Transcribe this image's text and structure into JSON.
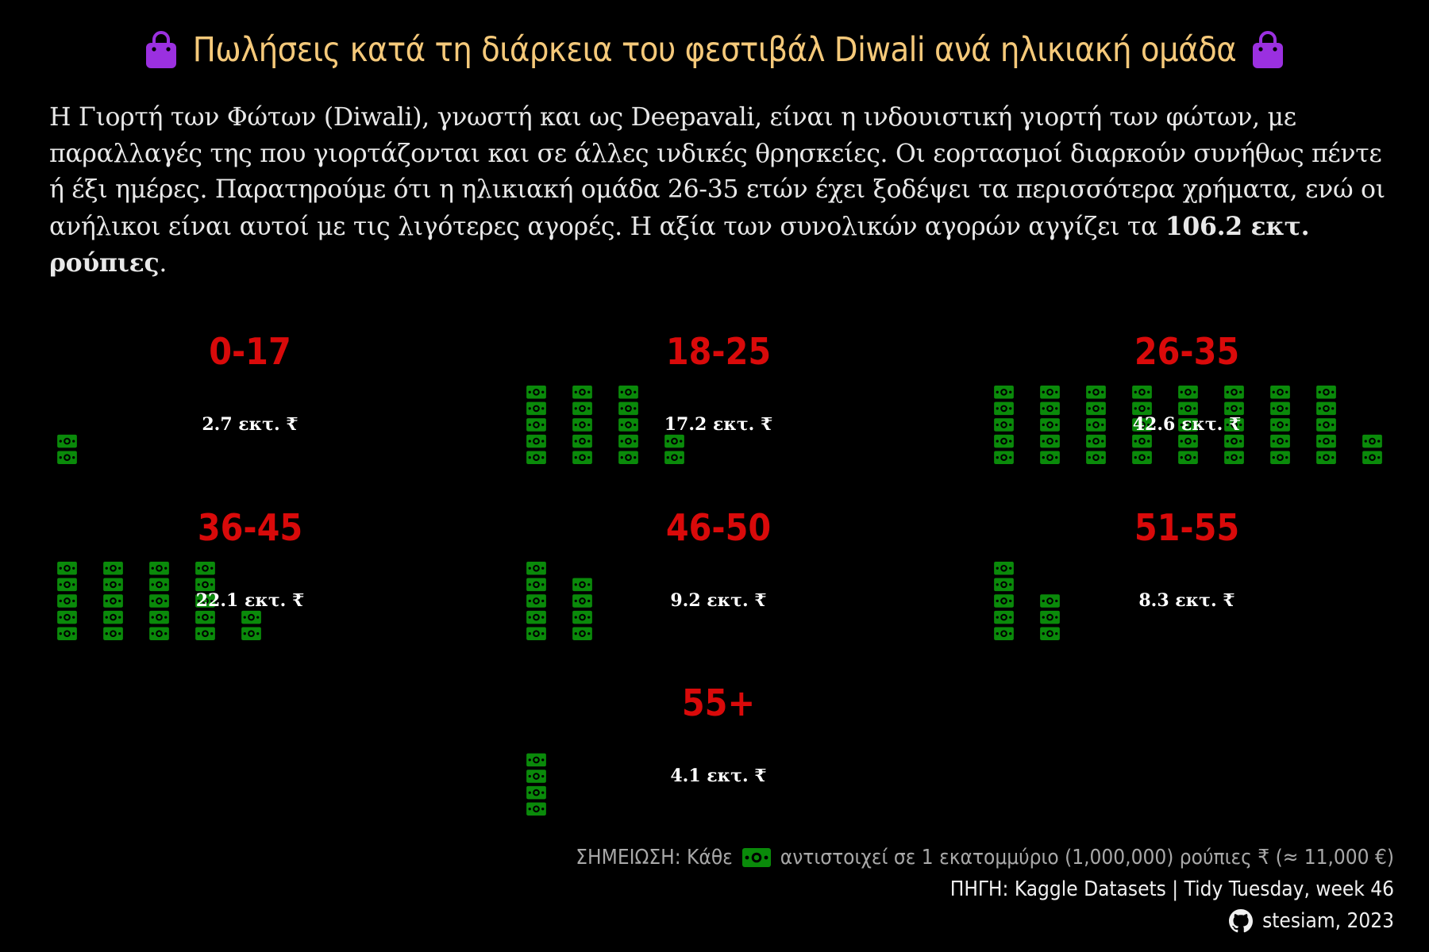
{
  "header": {
    "title": "Πωλήσεις κατά τη διάρκεια του φεστιβάλ Diwali ανά ηλικιακή ομάδα",
    "icon_left": "shopping-bag-icon",
    "icon_right": "shopping-bag-icon"
  },
  "description": {
    "text": "Η Γιορτή των Φώτων (Diwali), γνωστή και ως Deepavali, είναι η ινδουιστική γιορτή των φώτων, με παραλλαγές της που γιορτάζονται και σε άλλες ινδικές θρησκείες. Οι εορτασμοί διαρκούν συνήθως πέντε ή έξι ημέρες. Παρατηρούμε ότι η ηλικιακή ομάδα 26-35 ετών έχει ξοδέψει τα περισσότερα χρήματα, ενώ οι ανήλικοι είναι αυτοί με τις λιγότερες αγορές. Η αξία των συνολικών αγορών αγγίζει τα ",
    "highlight": "106.2 εκτ. ρούπιες",
    "end": "."
  },
  "colors": {
    "background": "#000000",
    "title": "#f5c97a",
    "group_label": "#d90a0a",
    "money_icon": "#0a8a0a",
    "bag_icon": "#9b30e0",
    "value_text": "#ffffff"
  },
  "chart_data": {
    "type": "waffle",
    "unit": "1 εκατομμύριο ρούπιες",
    "groups": [
      {
        "label": "0-17",
        "value": 2.7,
        "value_label": "2.7 εκτ. ₹",
        "icons": 2
      },
      {
        "label": "18-25",
        "value": 17.2,
        "value_label": "17.2 εκτ. ₹",
        "icons": 17
      },
      {
        "label": "26-35",
        "value": 42.6,
        "value_label": "42.6 εκτ. ₹",
        "icons": 42
      },
      {
        "label": "36-45",
        "value": 22.1,
        "value_label": "22.1 εκτ. ₹",
        "icons": 22
      },
      {
        "label": "46-50",
        "value": 9.2,
        "value_label": "9.2 εκτ. ₹",
        "icons": 9
      },
      {
        "label": "51-55",
        "value": 8.3,
        "value_label": "8.3 εκτ. ₹",
        "icons": 8
      },
      {
        "label": "55+",
        "value": 4.1,
        "value_label": "4.1 εκτ. ₹",
        "icons": 4
      }
    ],
    "icon": "money-bill-icon"
  },
  "footer": {
    "note_prefix": "ΣΗΜΕΙΩΣΗ: Κάθε",
    "note_suffix": "αντιστοιχεί σε 1 εκατομμύριο (1,000,000) ρούπιες ₹ (≈ 11,000 €)",
    "source": "ΠΗΓΗ: Kaggle Datasets | Tidy Tuesday, week 46",
    "author": "stesiam, 2023",
    "author_icon": "github-icon"
  }
}
